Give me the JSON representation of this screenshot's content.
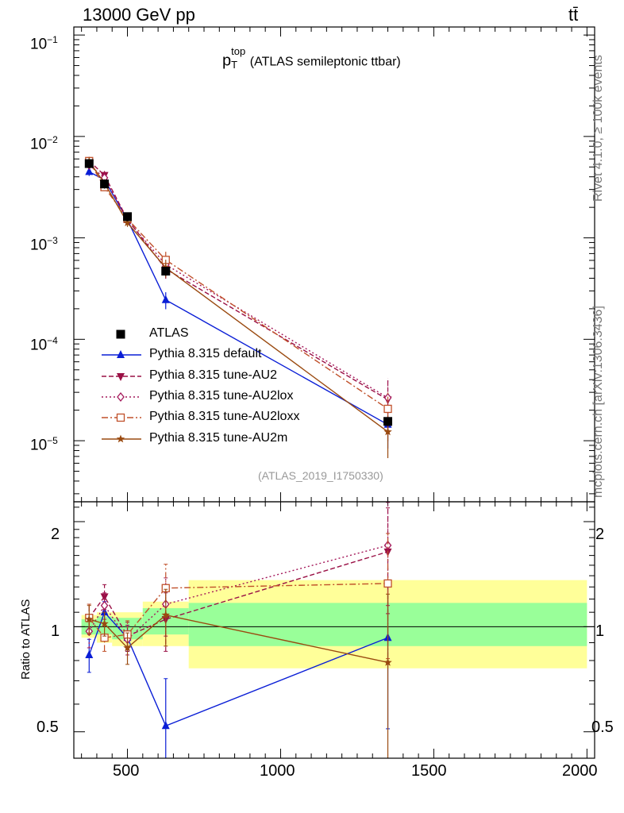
{
  "header": {
    "energy": "13000 GeV pp",
    "process": "tt̄"
  },
  "side": {
    "rivet": "Rivet 4.1.0, ≥ 100k events",
    "site": "mcplots.cern.ch [arXiv:1306.3436]"
  },
  "chart_data": {
    "type": "line",
    "title_main": "p",
    "title_sup": "top",
    "title_sub": "T",
    "title_rest": "(ATLAS semileptonic ttbar)",
    "analysis": "(ATLAS_2019_I1750330)",
    "xlim": [
      325,
      2025
    ],
    "ylim_log": [
      2.5e-06,
      0.12
    ],
    "ratio_ylim": [
      0.42,
      2.28
    ],
    "ratio_ylabel": "Ratio to ATLAS",
    "x_ticks": [
      "500",
      "1000",
      "1500",
      "2000"
    ],
    "y_ticks": [
      {
        "base": "10",
        "exp": "−1"
      },
      {
        "base": "10",
        "exp": "−2"
      },
      {
        "base": "10",
        "exp": "−3"
      },
      {
        "base": "10",
        "exp": "−4"
      },
      {
        "base": "10",
        "exp": "−5"
      }
    ],
    "ratio_ticks": [
      "2",
      "1",
      "0.5"
    ],
    "bins": [
      {
        "lo": 350,
        "hi": 400
      },
      {
        "lo": 400,
        "hi": 450
      },
      {
        "lo": 450,
        "hi": 550
      },
      {
        "lo": 550,
        "hi": 700
      },
      {
        "lo": 700,
        "hi": 2000
      }
    ],
    "x": [
      375,
      425,
      500,
      625,
      1350
    ],
    "data": {
      "name": "ATLAS",
      "values": [
        0.0054,
        0.0034,
        0.00162,
        0.00047,
        1.55e-05
      ],
      "band_inner": [
        [
          0.95,
          1.05
        ],
        [
          0.95,
          1.07
        ],
        [
          0.92,
          1.06
        ],
        [
          0.95,
          1.13
        ],
        [
          0.88,
          1.17
        ]
      ],
      "band_outer": [
        [
          0.93,
          1.08
        ],
        [
          0.9,
          1.1
        ],
        [
          0.88,
          1.1
        ],
        [
          0.88,
          1.18
        ],
        [
          0.76,
          1.36
        ]
      ]
    },
    "series": [
      {
        "name": "Pythia 8.315 default",
        "color": "#0a1ed6",
        "dash": "",
        "marker": "triangle-up",
        "ratio": [
          0.83,
          1.1,
          0.93,
          0.52,
          0.93
        ],
        "err": [
          0.09,
          0.08,
          0.08,
          0.19,
          0.42
        ]
      },
      {
        "name": "Pythia 8.315 tune-AU2",
        "color": "#9a1045",
        "dash": "6,3",
        "marker": "triangle-down",
        "ratio": [
          1.06,
          1.22,
          0.94,
          1.05,
          1.64
        ],
        "err": [
          0.1,
          0.1,
          0.09,
          0.2,
          0.55
        ]
      },
      {
        "name": "Pythia 8.315 tune-AU2lox",
        "color": "#a4185a",
        "dash": "2,3",
        "marker": "diamond-open",
        "ratio": [
          0.97,
          1.15,
          0.92,
          1.16,
          1.71
        ],
        "err": [
          0.1,
          0.1,
          0.09,
          0.22,
          0.56
        ]
      },
      {
        "name": "Pythia 8.315 tune-AU2loxx",
        "color": "#c0502a",
        "dash": "8,3,2,3",
        "marker": "square-open",
        "ratio": [
          1.06,
          0.93,
          0.95,
          1.29,
          1.33
        ],
        "err": [
          0.1,
          0.08,
          0.09,
          0.22,
          0.52
        ]
      },
      {
        "name": "Pythia 8.315 tune-AU2m",
        "color": "#9a4a10",
        "dash": "",
        "marker": "star",
        "ratio": [
          1.05,
          1.02,
          0.87,
          1.08,
          0.79
        ],
        "err": [
          0.1,
          0.08,
          0.09,
          0.2,
          0.45
        ]
      }
    ]
  }
}
